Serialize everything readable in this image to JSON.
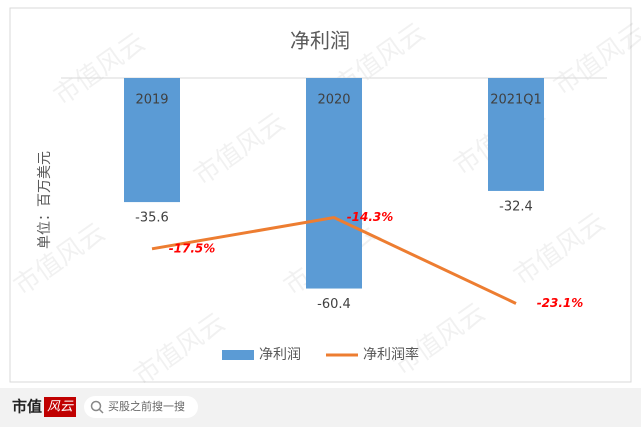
{
  "chart_data": {
    "type": "bar",
    "title": "净利润",
    "y_label": "单位：百万美元",
    "categories": [
      "2019",
      "2020",
      "2021Q1"
    ],
    "series": [
      {
        "name": "净利润",
        "type": "bar",
        "color": "#5b9bd5",
        "values": [
          -35.6,
          -60.4,
          -32.4
        ]
      },
      {
        "name": "净利润率",
        "type": "line",
        "axis": "y2",
        "color": "#ed7d31",
        "values": [
          -17.5,
          -14.3,
          -23.1
        ],
        "value_labels": [
          "-17.5%",
          "-14.3%",
          "-23.1%"
        ]
      }
    ],
    "ylim": [
      -70,
      0
    ],
    "y2lim": [
      -25,
      0
    ],
    "legend": "bottom"
  },
  "watermark": "市值风云",
  "footer": {
    "logo": "市值",
    "logo_mark": "风云",
    "search": "买股之前搜一搜"
  }
}
